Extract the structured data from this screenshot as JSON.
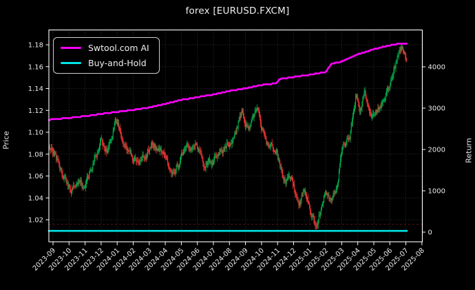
{
  "chart": {
    "title": "forex [EURUSD.FXCM]",
    "ylabel_left": "Price",
    "ylabel_right": "Return"
  },
  "legend": {
    "position": "upper-left",
    "items": [
      {
        "label": "Swtool.com AI",
        "color": "#ff00ff"
      },
      {
        "label": "Buy-and-Hold",
        "color": "#00e5e5"
      }
    ]
  },
  "colors": {
    "background": "#000000",
    "text": "#eaeaea",
    "spine": "#ffffff",
    "grid": "#4f4f4f",
    "candle_up": "#00b04c",
    "candle_down": "#ef3434",
    "ai_line": "#ff00ff",
    "buy_hold_line": "#00e5e5",
    "faint_reference_line": "#5c1414"
  },
  "chart_data": {
    "type": "candlestick+line",
    "title": "forex [EURUSD.FXCM]",
    "grid": true,
    "x_tick_labels": [
      "2023-09",
      "2023-10",
      "2023-11",
      "2023-12",
      "2024-01",
      "2024-02",
      "2024-03",
      "2024-04",
      "2024-05",
      "2024-06",
      "2024-07",
      "2024-08",
      "2024-09",
      "2024-10",
      "2024-11",
      "2024-12",
      "2025-01",
      "2025-02",
      "2025-03",
      "2025-04",
      "2025-05",
      "2025-06",
      "2025-07",
      "2025-08"
    ],
    "price_axis": {
      "label": "Price",
      "side": "left",
      "ticks": [
        1.02,
        1.04,
        1.06,
        1.08,
        1.1,
        1.12,
        1.14,
        1.16,
        1.18
      ],
      "range": [
        1.0,
        1.193
      ]
    },
    "return_axis": {
      "label": "Return",
      "side": "right",
      "ticks": [
        0,
        1000,
        2000,
        3000,
        4000
      ],
      "range": [
        -230,
        4880
      ]
    },
    "series": [
      {
        "name": "EURUSD candles",
        "type": "candlestick",
        "axis": "price",
        "note": "close-price anchors read from chart; months measured from 2023-09 tick",
        "anchor_months": [
          -0.25,
          0.3,
          0.8,
          1.1,
          1.5,
          2.0,
          2.4,
          3.0,
          3.4,
          3.9,
          4.4,
          5.0,
          5.5,
          6.1,
          6.6,
          7.3,
          7.6,
          8.3,
          8.9,
          9.4,
          9.9,
          10.6,
          11.1,
          11.8,
          12.2,
          12.7,
          13.3,
          13.9,
          14.4,
          14.9,
          15.3,
          15.7,
          16.1,
          16.45,
          16.9,
          17.3,
          17.7,
          18.0,
          18.5,
          18.9,
          19.15,
          19.45,
          19.9,
          20.4,
          20.9,
          21.4,
          21.7,
          21.9,
          22.05
        ],
        "anchor_close": [
          1.089,
          1.072,
          1.057,
          1.047,
          1.053,
          1.046,
          1.066,
          1.091,
          1.08,
          1.112,
          1.094,
          1.077,
          1.072,
          1.086,
          1.088,
          1.064,
          1.068,
          1.083,
          1.089,
          1.07,
          1.073,
          1.085,
          1.092,
          1.118,
          1.104,
          1.119,
          1.092,
          1.082,
          1.054,
          1.058,
          1.035,
          1.044,
          1.024,
          1.014,
          1.041,
          1.037,
          1.049,
          1.083,
          1.096,
          1.135,
          1.117,
          1.132,
          1.113,
          1.128,
          1.143,
          1.162,
          1.18,
          1.173,
          1.158
        ]
      },
      {
        "name": "Swtool.com AI",
        "type": "line",
        "axis": "return",
        "anchor_months": [
          -0.25,
          1,
          2,
          3,
          4,
          5,
          6,
          7,
          8,
          9,
          10,
          11,
          12,
          13,
          13.9,
          14.15,
          15,
          16,
          17,
          17.35,
          18,
          19,
          20,
          21,
          21.7,
          22.05
        ],
        "values": [
          2720,
          2765,
          2805,
          2860,
          2910,
          2960,
          3015,
          3105,
          3200,
          3265,
          3330,
          3415,
          3480,
          3560,
          3600,
          3705,
          3755,
          3805,
          3875,
          4075,
          4125,
          4300,
          4425,
          4520,
          4570,
          4560
        ]
      },
      {
        "name": "Buy-and-Hold",
        "type": "line",
        "axis": "return",
        "constant_value": 30
      },
      {
        "name": "faint reference line",
        "type": "line",
        "axis": "return",
        "style": "dashed",
        "constant_value": 190
      }
    ]
  }
}
